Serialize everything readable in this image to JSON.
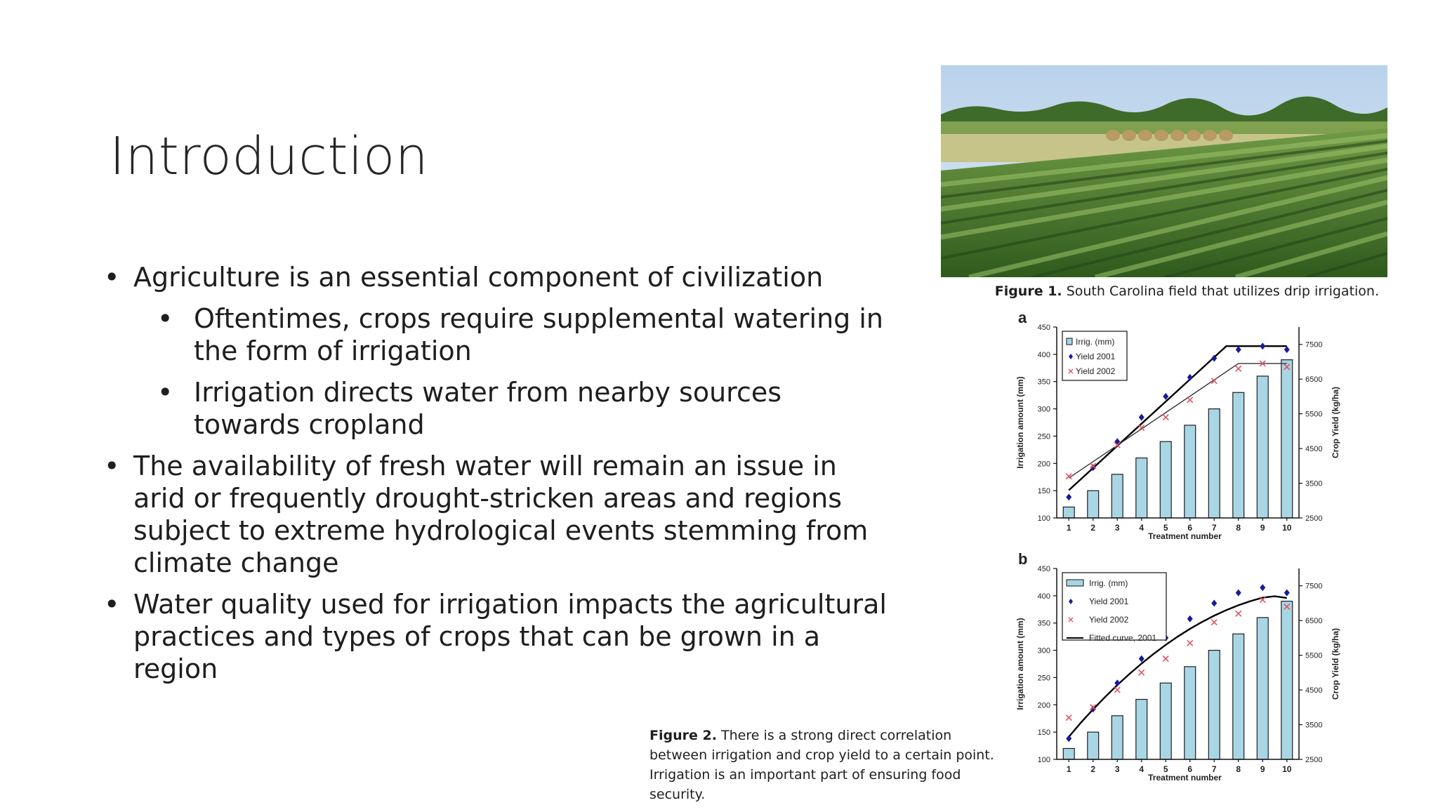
{
  "slide": {
    "title": "Introduction",
    "bullets": [
      {
        "level": 1,
        "marker": "•",
        "text": "Agriculture is an essential component of civilization"
      },
      {
        "level": 2,
        "marker": "•",
        "text": "Oftentimes, crops require supplemental watering in the form of irrigation"
      },
      {
        "level": 2,
        "marker": "•",
        "text": "Irrigation directs water from nearby sources towards cropland"
      },
      {
        "level": 1,
        "marker": "•",
        "text": "The availability of fresh water will remain an issue in arid or frequently drought-stricken areas and regions subject to extreme hydrological events stemming from climate change"
      },
      {
        "level": 1,
        "marker": "•",
        "text": "Water quality used for irrigation impacts the agricultural practices and types of crops that can be grown in a region"
      }
    ]
  },
  "figure1": {
    "label": "Figure 1.",
    "text": "South Carolina field that utilizes drip irrigation."
  },
  "figure2": {
    "label": "Figure 2.",
    "text": "There is a strong direct correlation between irrigation and crop yield to a certain point. Irrigation is an important part of ensuring food security."
  },
  "colors": {
    "bar_fill": "#a9d6e5",
    "yield2001": "#1a1a9c",
    "yield2002": "#e05560",
    "line": "#000000"
  },
  "chart_data": [
    {
      "panel": "a",
      "type": "bar",
      "xlabel": "Treatment number",
      "ylabel": "Irrigation amount (mm)",
      "y2label": "Crop Yield (kg/ha)",
      "categories": [
        "1",
        "2",
        "3",
        "4",
        "5",
        "6",
        "7",
        "8",
        "9",
        "10"
      ],
      "ylim": [
        100,
        450
      ],
      "yticks": [
        100,
        150,
        200,
        250,
        300,
        350,
        400,
        450
      ],
      "y2lim": [
        2500,
        8000
      ],
      "y2ticks": [
        2500,
        3500,
        4500,
        5500,
        6500,
        7500
      ],
      "legend_position": "top-left",
      "series": [
        {
          "name": "Irrig. (mm)",
          "kind": "bar",
          "axis": "left",
          "values": [
            120,
            150,
            180,
            210,
            240,
            270,
            300,
            330,
            360,
            390
          ]
        },
        {
          "name": "Yield 2001",
          "kind": "scatter",
          "marker": "diamond",
          "axis": "right",
          "values": [
            3100,
            3950,
            4700,
            5400,
            6000,
            6550,
            7100,
            7350,
            7450,
            7350
          ]
        },
        {
          "name": "Yield 2002",
          "kind": "scatter",
          "marker": "x",
          "axis": "right",
          "values": [
            3700,
            4000,
            4600,
            5100,
            5400,
            5900,
            6450,
            6800,
            6950,
            6850
          ]
        }
      ],
      "fit_lines": [
        {
          "x": [
            1,
            7.5,
            10
          ],
          "y": [
            3300,
            7450,
            7450
          ]
        },
        {
          "x": [
            1,
            8,
            10
          ],
          "y": [
            3650,
            6950,
            6950
          ]
        }
      ]
    },
    {
      "panel": "b",
      "type": "bar",
      "xlabel": "Treatment number",
      "ylabel": "Irrigation amount (mm)",
      "y2label": "Crop Yield (kg/ha)",
      "categories": [
        "1",
        "2",
        "3",
        "4",
        "5",
        "6",
        "7",
        "8",
        "9",
        "10"
      ],
      "ylim": [
        100,
        450
      ],
      "yticks": [
        100,
        150,
        200,
        250,
        300,
        350,
        400,
        450
      ],
      "y2lim": [
        2500,
        8000
      ],
      "y2ticks": [
        2500,
        3500,
        4500,
        5500,
        6500,
        7500
      ],
      "legend_position": "top-left",
      "series": [
        {
          "name": "Irrig. (mm)",
          "kind": "bar",
          "axis": "left",
          "values": [
            120,
            150,
            180,
            210,
            240,
            270,
            300,
            330,
            360,
            390
          ]
        },
        {
          "name": "Yield 2001",
          "kind": "scatter",
          "marker": "diamond",
          "axis": "right",
          "values": [
            3100,
            3950,
            4700,
            5400,
            6000,
            6550,
            7000,
            7300,
            7450,
            7300
          ]
        },
        {
          "name": "Yield 2002",
          "kind": "scatter",
          "marker": "x",
          "axis": "right",
          "values": [
            3700,
            4000,
            4500,
            5000,
            5400,
            5850,
            6450,
            6700,
            7100,
            6900
          ]
        }
      ],
      "fitted_curve": {
        "name": "Fitted curve, 2001",
        "x": [
          1,
          1.5,
          2,
          2.5,
          3,
          3.5,
          4,
          4.5,
          5,
          5.5,
          6,
          6.5,
          7,
          7.5,
          8,
          8.5,
          9,
          9.5,
          10
        ],
        "y": [
          3150,
          3560,
          3940,
          4300,
          4640,
          4960,
          5260,
          5540,
          5800,
          6040,
          6260,
          6460,
          6640,
          6800,
          6940,
          7060,
          7160,
          7200,
          7150
        ]
      }
    }
  ]
}
